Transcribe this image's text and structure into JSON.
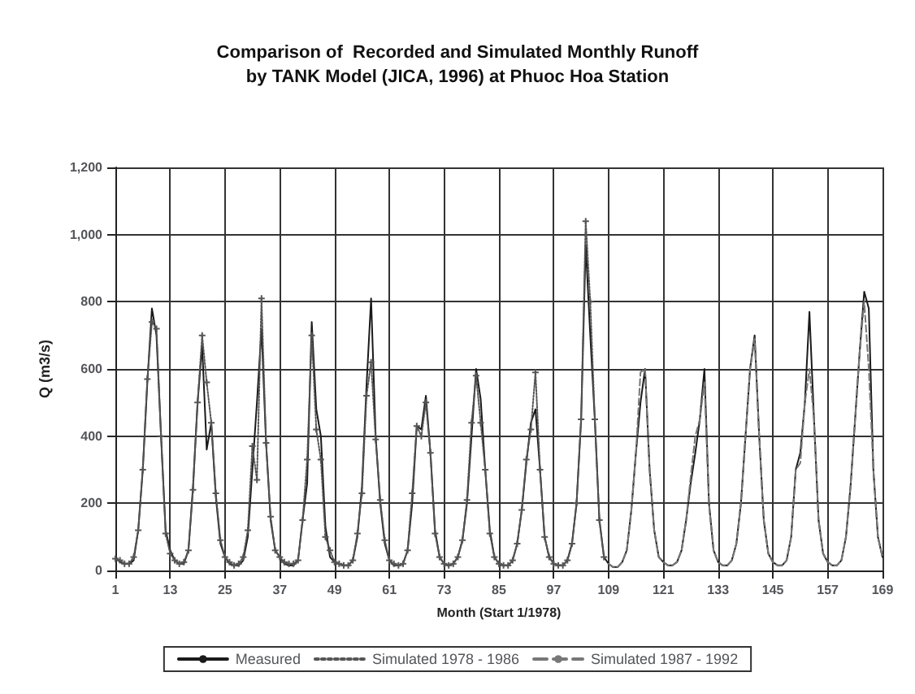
{
  "chart_data": {
    "type": "line",
    "title": "Comparison of  Recorded and Simulated Monthly Runoff\nby TANK Model (JICA, 1996) at Phuoc Hoa Station",
    "xlabel": "Month (Start 1/1978)",
    "ylabel": "Q (m3/s)",
    "x": [
      1,
      2,
      3,
      4,
      5,
      6,
      7,
      8,
      9,
      10,
      11,
      12,
      13,
      14,
      15,
      16,
      17,
      18,
      19,
      20,
      21,
      22,
      23,
      24,
      25,
      26,
      27,
      28,
      29,
      30,
      31,
      32,
      33,
      34,
      35,
      36,
      37,
      38,
      39,
      40,
      41,
      42,
      43,
      44,
      45,
      46,
      47,
      48,
      49,
      50,
      51,
      52,
      53,
      54,
      55,
      56,
      57,
      58,
      59,
      60,
      61,
      62,
      63,
      64,
      65,
      66,
      67,
      68,
      69,
      70,
      71,
      72,
      73,
      74,
      75,
      76,
      77,
      78,
      79,
      80,
      81,
      82,
      83,
      84,
      85,
      86,
      87,
      88,
      89,
      90,
      91,
      92,
      93,
      94,
      95,
      96,
      97,
      98,
      99,
      100,
      101,
      102,
      103,
      104,
      105,
      106,
      107,
      108,
      109,
      110,
      111,
      112,
      113,
      114,
      115,
      116,
      117,
      118,
      119,
      120,
      121,
      122,
      123,
      124,
      125,
      126,
      127,
      128,
      129,
      130,
      131,
      132,
      133,
      134,
      135,
      136,
      137,
      138,
      139,
      140,
      141,
      142,
      143,
      144,
      145,
      146,
      147,
      148,
      149,
      150,
      151,
      152,
      153,
      154,
      155,
      156,
      157,
      158,
      159,
      160,
      161,
      162,
      163,
      164,
      165,
      166,
      167,
      168,
      169
    ],
    "xlim": [
      1,
      169
    ],
    "xticks": [
      1,
      13,
      25,
      37,
      49,
      61,
      73,
      85,
      97,
      109,
      121,
      133,
      145,
      157,
      169
    ],
    "ylim": [
      0,
      1200
    ],
    "yticks": [
      0,
      200,
      400,
      600,
      800,
      {
        "value": 1000,
        "label": "1,000"
      },
      {
        "value": 1200,
        "label": "1,200"
      }
    ],
    "grid": true,
    "legend": "bottom",
    "series": [
      {
        "name": "Measured",
        "color": "#1a1a1a",
        "marker": "none",
        "line_style": "solid",
        "values": [
          40,
          25,
          20,
          20,
          30,
          120,
          300,
          560,
          780,
          700,
          400,
          120,
          60,
          30,
          20,
          20,
          60,
          250,
          500,
          670,
          360,
          440,
          220,
          80,
          40,
          20,
          15,
          15,
          30,
          100,
          300,
          500,
          720,
          380,
          150,
          60,
          40,
          20,
          15,
          15,
          30,
          150,
          260,
          740,
          480,
          400,
          130,
          40,
          25,
          20,
          15,
          15,
          30,
          100,
          250,
          550,
          810,
          400,
          200,
          80,
          30,
          15,
          15,
          20,
          60,
          200,
          430,
          420,
          520,
          350,
          120,
          40,
          20,
          15,
          20,
          40,
          90,
          200,
          400,
          600,
          510,
          300,
          120,
          40,
          20,
          15,
          15,
          30,
          80,
          180,
          320,
          440,
          480,
          300,
          100,
          40,
          20,
          15,
          15,
          30,
          80,
          200,
          450,
          970,
          700,
          450,
          150,
          40,
          20,
          10,
          10,
          25,
          60,
          180,
          350,
          500,
          600,
          300,
          120,
          40,
          25,
          15,
          15,
          25,
          60,
          150,
          260,
          350,
          450,
          600,
          200,
          60,
          25,
          15,
          15,
          30,
          80,
          200,
          400,
          600,
          700,
          400,
          150,
          50,
          25,
          15,
          15,
          30,
          100,
          300,
          350,
          500,
          770,
          450,
          150,
          50,
          25,
          15,
          15,
          30,
          100,
          250,
          450,
          650,
          830,
          780,
          300,
          100,
          40
        ]
      },
      {
        "name": "Simulated 1978 - 1986",
        "color": "#555555",
        "marker": "cross",
        "line_style": "dotted",
        "values": [
          35,
          30,
          20,
          20,
          40,
          120,
          300,
          570,
          740,
          720,
          400,
          110,
          50,
          30,
          20,
          25,
          60,
          240,
          500,
          700,
          560,
          440,
          230,
          90,
          40,
          25,
          15,
          20,
          40,
          120,
          370,
          270,
          810,
          380,
          160,
          60,
          40,
          25,
          20,
          20,
          30,
          150,
          330,
          700,
          420,
          330,
          100,
          60,
          25,
          20,
          15,
          15,
          30,
          110,
          230,
          520,
          620,
          390,
          210,
          90,
          30,
          20,
          15,
          20,
          60,
          230,
          430,
          400,
          500,
          350,
          110,
          40,
          20,
          15,
          20,
          40,
          90,
          210,
          440,
          580,
          440,
          300,
          110,
          40,
          20,
          15,
          15,
          30,
          80,
          180,
          330,
          420,
          590,
          300,
          100,
          40,
          20,
          15,
          15,
          30,
          80,
          200,
          450,
          1040,
          800,
          450,
          150,
          40,
          null,
          null,
          null,
          null,
          null,
          null,
          null,
          null,
          null,
          null,
          null,
          null,
          null,
          null,
          null,
          null,
          null,
          null,
          null,
          null,
          null,
          null,
          null,
          null,
          null,
          null,
          null,
          null,
          null,
          null,
          null,
          null,
          null,
          null,
          null,
          null,
          null,
          null,
          null,
          null,
          null,
          null,
          null,
          null,
          null,
          null,
          null,
          null,
          null,
          null,
          null,
          null,
          null,
          null,
          null,
          null,
          null,
          null,
          null,
          null,
          null
        ]
      },
      {
        "name": "Simulated 1987 - 1992",
        "color": "#777777",
        "marker": "none",
        "line_style": "dashed",
        "values": [
          null,
          null,
          null,
          null,
          null,
          null,
          null,
          null,
          null,
          null,
          null,
          null,
          null,
          null,
          null,
          null,
          null,
          null,
          null,
          null,
          null,
          null,
          null,
          null,
          null,
          null,
          null,
          null,
          null,
          null,
          null,
          null,
          null,
          null,
          null,
          null,
          null,
          null,
          null,
          null,
          null,
          null,
          null,
          null,
          null,
          null,
          null,
          null,
          null,
          null,
          null,
          null,
          null,
          null,
          null,
          null,
          null,
          null,
          null,
          null,
          null,
          null,
          null,
          null,
          null,
          null,
          null,
          null,
          null,
          null,
          null,
          null,
          null,
          null,
          null,
          null,
          null,
          null,
          null,
          null,
          null,
          null,
          null,
          null,
          null,
          null,
          null,
          null,
          null,
          null,
          null,
          null,
          null,
          null,
          null,
          null,
          null,
          null,
          null,
          null,
          null,
          null,
          null,
          null,
          null,
          null,
          null,
          null,
          20,
          10,
          10,
          25,
          60,
          180,
          350,
          590,
          600,
          300,
          120,
          40,
          25,
          15,
          15,
          25,
          60,
          150,
          280,
          400,
          450,
          560,
          200,
          60,
          25,
          15,
          15,
          30,
          80,
          200,
          400,
          600,
          690,
          400,
          150,
          50,
          25,
          15,
          15,
          30,
          100,
          300,
          320,
          500,
          600,
          450,
          150,
          50,
          25,
          15,
          15,
          30,
          100,
          250,
          450,
          650,
          800,
          600,
          300,
          100,
          40
        ]
      }
    ]
  }
}
